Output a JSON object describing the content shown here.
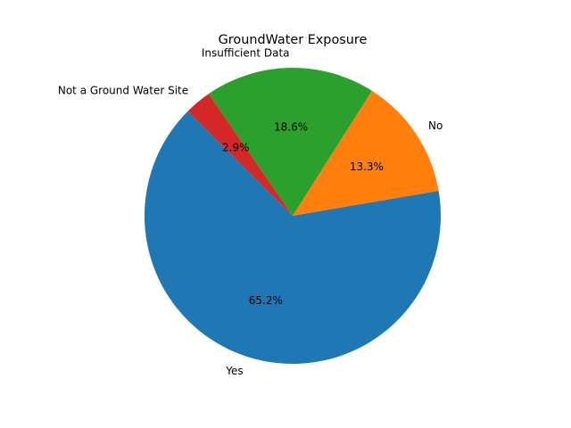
{
  "chart_data": {
    "type": "pie",
    "title": "GroundWater Exposure",
    "slices": [
      {
        "label": "Yes",
        "value": 65.2,
        "pct_label": "65.2%",
        "color": "#1f77b4"
      },
      {
        "label": "No",
        "value": 13.3,
        "pct_label": "13.3%",
        "color": "#ff7f0e"
      },
      {
        "label": "Insufficient Data",
        "value": 18.6,
        "pct_label": "18.6%",
        "color": "#2ca02c"
      },
      {
        "label": "Not a Ground Water Site",
        "value": 2.9,
        "pct_label": "2.9%",
        "color": "#d62728"
      }
    ]
  }
}
